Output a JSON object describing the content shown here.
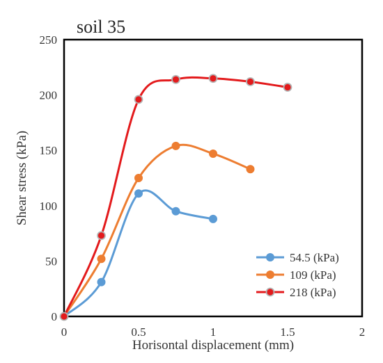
{
  "chart_data": {
    "type": "line",
    "title": "soil 35",
    "xlabel": "Horisontal displacement (mm)",
    "ylabel": "Shear stress (kPa)",
    "xlim": [
      0,
      2
    ],
    "ylim": [
      0,
      250
    ],
    "xticks": [
      0,
      0.5,
      1,
      1.5,
      2
    ],
    "xtick_labels": [
      "0",
      "0.5",
      "1",
      "1.5",
      "2"
    ],
    "yticks": [
      0,
      50,
      100,
      150,
      200,
      250
    ],
    "ytick_labels": [
      "0",
      "50",
      "100",
      "150",
      "200",
      "250"
    ],
    "grid": false,
    "legend_position": "bottom-right",
    "series": [
      {
        "name": "54.5 (kPa)",
        "color": "#5b9bd5",
        "marker_fill": "#5b9bd5",
        "x": [
          0,
          0.25,
          0.5,
          0.75,
          1.0
        ],
        "y": [
          0,
          31,
          111,
          95,
          88
        ]
      },
      {
        "name": "109 (kPa)",
        "color": "#ed7d31",
        "marker_fill": "#ed7d31",
        "x": [
          0,
          0.25,
          0.5,
          0.75,
          1.0,
          1.25
        ],
        "y": [
          0,
          52,
          125,
          154,
          147,
          133
        ]
      },
      {
        "name": "218 (kPa)",
        "color": "#e31a1c",
        "marker_fill": "#e31a1c",
        "marker_edge": "#b4b4b4",
        "x": [
          0,
          0.25,
          0.5,
          0.75,
          1.0,
          1.25,
          1.5
        ],
        "y": [
          0,
          73,
          196,
          214,
          215,
          212,
          207
        ]
      }
    ]
  }
}
